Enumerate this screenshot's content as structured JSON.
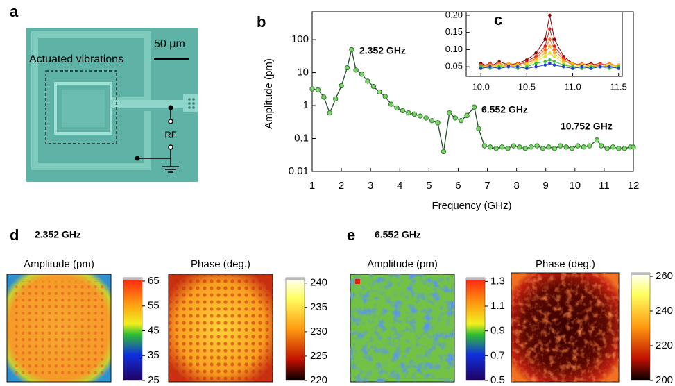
{
  "chart_data": [
    {
      "type": "line",
      "label": "b",
      "x_label": "Frequency (GHz)",
      "y_label": "Amplitude (pm)",
      "log_y": true,
      "x": [
        1.0,
        1.2,
        1.4,
        1.6,
        1.8,
        2.0,
        2.2,
        2.352,
        2.5,
        2.7,
        2.9,
        3.1,
        3.3,
        3.5,
        3.7,
        3.9,
        4.1,
        4.3,
        4.5,
        4.7,
        4.9,
        5.1,
        5.3,
        5.5,
        5.7,
        5.9,
        6.1,
        6.3,
        6.552,
        6.7,
        6.9,
        7.1,
        7.3,
        7.5,
        7.7,
        7.9,
        8.1,
        8.3,
        8.5,
        8.7,
        8.9,
        9.1,
        9.3,
        9.5,
        9.7,
        9.9,
        10.1,
        10.3,
        10.5,
        10.752,
        10.9,
        11.1,
        11.3,
        11.5,
        11.7,
        11.9,
        12.0
      ],
      "values": [
        3.2,
        3.0,
        1.8,
        0.6,
        1.6,
        4.0,
        14,
        50,
        12,
        9,
        5.5,
        3.8,
        2.6,
        1.9,
        1.1,
        0.85,
        0.7,
        0.6,
        0.55,
        0.48,
        0.42,
        0.35,
        0.3,
        0.04,
        0.6,
        0.42,
        0.35,
        0.5,
        0.9,
        0.2,
        0.06,
        0.055,
        0.05,
        0.055,
        0.05,
        0.06,
        0.055,
        0.05,
        0.055,
        0.06,
        0.05,
        0.055,
        0.05,
        0.06,
        0.055,
        0.05,
        0.06,
        0.055,
        0.06,
        0.09,
        0.06,
        0.05,
        0.055,
        0.05,
        0.05,
        0.055,
        0.055
      ],
      "color": "#7ed36a",
      "line_color": "#1f4a22",
      "xlim": [
        1,
        12
      ],
      "xticks": [
        1,
        2,
        3,
        4,
        5,
        6,
        7,
        8,
        9,
        10,
        11,
        12
      ],
      "ylim": [
        0.01,
        700
      ],
      "yticks": [
        0.01,
        0.1,
        1,
        10,
        100
      ],
      "annotations": [
        "2.352  GHz",
        "6.552  GHz",
        "10.752  GHz"
      ]
    },
    {
      "type": "line",
      "label": "c",
      "x": [
        10.0,
        10.1,
        10.2,
        10.3,
        10.4,
        10.5,
        10.6,
        10.7,
        10.75,
        10.8,
        10.9,
        11.0,
        11.1,
        11.2,
        11.3,
        11.4,
        11.5
      ],
      "series": [
        {
          "color": "#8b0000",
          "values": [
            0.06,
            0.05,
            0.065,
            0.055,
            0.06,
            0.07,
            0.09,
            0.13,
            0.2,
            0.13,
            0.08,
            0.06,
            0.055,
            0.06,
            0.05,
            0.055,
            0.05
          ]
        },
        {
          "color": "#d62020",
          "values": [
            0.05,
            0.06,
            0.05,
            0.06,
            0.055,
            0.065,
            0.08,
            0.11,
            0.16,
            0.11,
            0.075,
            0.06,
            0.05,
            0.055,
            0.06,
            0.05,
            0.055
          ]
        },
        {
          "color": "#ff6a1a",
          "values": [
            0.055,
            0.05,
            0.06,
            0.05,
            0.06,
            0.06,
            0.075,
            0.1,
            0.13,
            0.1,
            0.07,
            0.055,
            0.06,
            0.05,
            0.055,
            0.06,
            0.05
          ]
        },
        {
          "color": "#ffb020",
          "values": [
            0.05,
            0.055,
            0.05,
            0.06,
            0.05,
            0.06,
            0.07,
            0.09,
            0.11,
            0.09,
            0.065,
            0.06,
            0.05,
            0.055,
            0.05,
            0.05,
            0.055
          ]
        },
        {
          "color": "#e0e030",
          "values": [
            0.045,
            0.05,
            0.055,
            0.05,
            0.055,
            0.055,
            0.065,
            0.08,
            0.09,
            0.08,
            0.06,
            0.05,
            0.055,
            0.045,
            0.05,
            0.055,
            0.05
          ]
        },
        {
          "color": "#40c040",
          "values": [
            0.05,
            0.045,
            0.05,
            0.05,
            0.045,
            0.05,
            0.06,
            0.065,
            0.07,
            0.065,
            0.055,
            0.05,
            0.045,
            0.05,
            0.05,
            0.045,
            0.05
          ]
        },
        {
          "color": "#2040d0",
          "values": [
            0.045,
            0.05,
            0.045,
            0.05,
            0.05,
            0.045,
            0.05,
            0.055,
            0.06,
            0.055,
            0.05,
            0.045,
            0.05,
            0.045,
            0.05,
            0.05,
            0.045
          ]
        }
      ],
      "xlim": [
        9.84,
        11.54
      ],
      "xticks": [
        {
          "value": 10,
          "label": "10.0"
        },
        {
          "value": 10.5,
          "label": "10.5"
        },
        {
          "value": 11,
          "label": "11.0"
        },
        {
          "value": 11.5,
          "label": "11.5"
        }
      ],
      "ylim": [
        0.022,
        0.21
      ],
      "yticks": [
        {
          "value": 0.05,
          "label": "0.05"
        },
        {
          "value": 0.1,
          "label": "0.10"
        },
        {
          "value": 0.15,
          "label": "0.15"
        },
        {
          "value": 0.2,
          "label": "0.20"
        }
      ]
    }
  ],
  "panel_a": {
    "label": "a",
    "scale_bar": "50 μm",
    "region_label": "Actuated vibrations",
    "port_label": "RF"
  },
  "panel_d": {
    "label": "d",
    "frequency": "2.352 GHz",
    "maps": [
      {
        "title": "Amplitude (pm)",
        "colorbar": {
          "lim": [
            25,
            66.4
          ],
          "ticks": [
            65,
            55,
            45,
            35,
            25
          ]
        }
      },
      {
        "title": "Phase (deg.)",
        "colorbar": {
          "lim": [
            220,
            241.1
          ],
          "ticks": [
            240,
            235,
            230,
            225,
            220
          ]
        }
      }
    ]
  },
  "panel_e": {
    "label": "e",
    "frequency": "6.552 GHz",
    "maps": [
      {
        "title": "Amplitude (pm)",
        "colorbar": {
          "lim": [
            0.5,
            1.33
          ],
          "ticks": [
            1.3,
            1.1,
            0.9,
            0.7,
            0.5
          ]
        }
      },
      {
        "title": "Phase (deg.)",
        "colorbar": {
          "lim": [
            200,
            262
          ],
          "ticks": [
            260,
            240,
            220,
            200
          ]
        }
      }
    ]
  }
}
